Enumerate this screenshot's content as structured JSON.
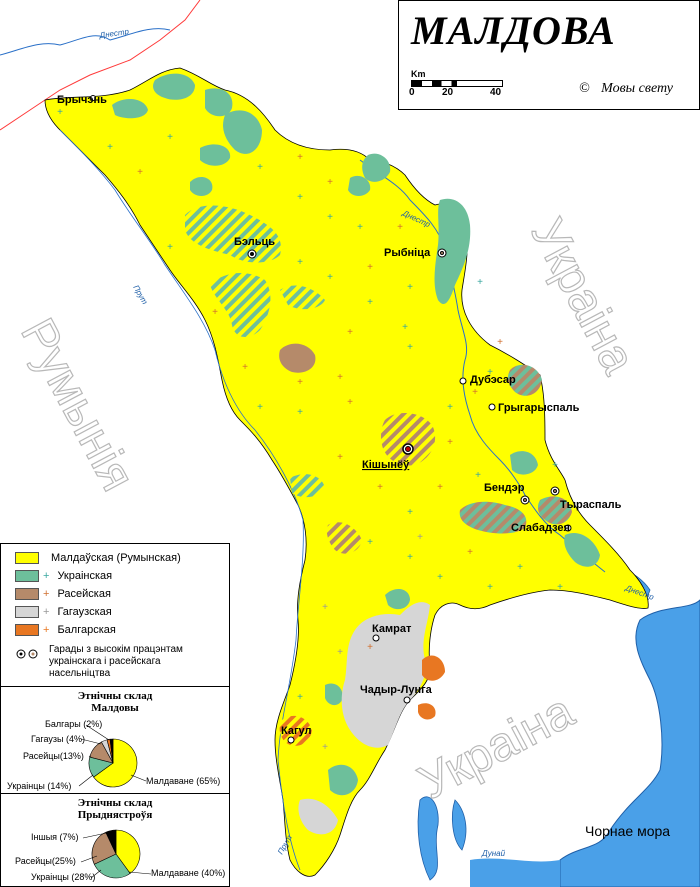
{
  "title": "МАЛДОВА",
  "scale": {
    "unit": "Km",
    "ticks": [
      "0",
      "20",
      "40"
    ]
  },
  "copyright": {
    "symbol": "©",
    "text": "Мовы свету"
  },
  "countries": {
    "romania": "Румынія",
    "ukraine_east": "Украіна",
    "ukraine_south": "Украіна"
  },
  "sea": "Чорнае мора",
  "rivers": {
    "dniester_top": "Днестр",
    "dniester_mid": "Днестр",
    "dniester_bottom": "Днестр",
    "prut_upper": "Прут",
    "prut_lower": "Прут",
    "danube": "Дунай"
  },
  "cities": {
    "brychany": "Брычэнь",
    "balti": "Бэльць",
    "rybnitsa": "Рыбніца",
    "dubossary": "Дубэсар",
    "grigoriopol": "Грыгарыспаль",
    "chisinau": "Кішынёў",
    "bender": "Бендэр",
    "tiraspol": "Тыраспаль",
    "slobodzeya": "Слабадзея",
    "komrat": "Камрат",
    "ceadir_lunga": "Чадыр-Лунга",
    "cahul": "Кагул"
  },
  "colors": {
    "moldovan": "#ffff00",
    "ukrainian": "#6dbf9b",
    "russian": "#b58a6a",
    "gagauz": "#d6d6d6",
    "bulgarian": "#e87722",
    "water": "#4aa0e8",
    "cross_ukr": "#3aa7a0",
    "cross_rus": "#d07030",
    "cross_gag": "#999999"
  },
  "legend": [
    {
      "label": "Малдаўская (Румынская)",
      "color": "#ffff00",
      "marker": ""
    },
    {
      "label": "Украінская",
      "color": "#6dbf9b",
      "marker": "+"
    },
    {
      "label": "Расейская",
      "color": "#b58a6a",
      "marker": "+"
    },
    {
      "label": "Гагаузская",
      "color": "#d6d6d6",
      "marker": "+"
    },
    {
      "label": "Балгарская",
      "color": "#e87722",
      "marker": "+"
    }
  ],
  "legend_cities_note": "Гарады з высокім працэнтам украінскага і расейскага насельніцтва",
  "pie_moldova": {
    "title_line1": "Этнічны склад",
    "title_line2": "Малдовы",
    "slices": [
      {
        "label": "Малдаване (65%)",
        "value": 65,
        "color": "#ffff00"
      },
      {
        "label": "Украінцы (14%)",
        "value": 14,
        "color": "#6dbf9b"
      },
      {
        "label": "Расейцы(13%)",
        "value": 13,
        "color": "#b58a6a"
      },
      {
        "label": "Гагаузы (4%)",
        "value": 4,
        "color": "#d6d6d6"
      },
      {
        "label": "Балгары (2%)",
        "value": 2,
        "color": "#e87722"
      },
      {
        "label": "",
        "value": 2,
        "color": "#000000"
      }
    ]
  },
  "pie_transnistria": {
    "title_line1": "Этнічны склад",
    "title_line2": "Прыднястроўя",
    "slices": [
      {
        "label": "Малдаване (40%)",
        "value": 40,
        "color": "#ffff00"
      },
      {
        "label": "Украінцы (28%)",
        "value": 28,
        "color": "#6dbf9b"
      },
      {
        "label": "Расейцы(25%)",
        "value": 25,
        "color": "#b58a6a"
      },
      {
        "label": "Іншыя (7%)",
        "value": 7,
        "color": "#000000"
      }
    ]
  }
}
